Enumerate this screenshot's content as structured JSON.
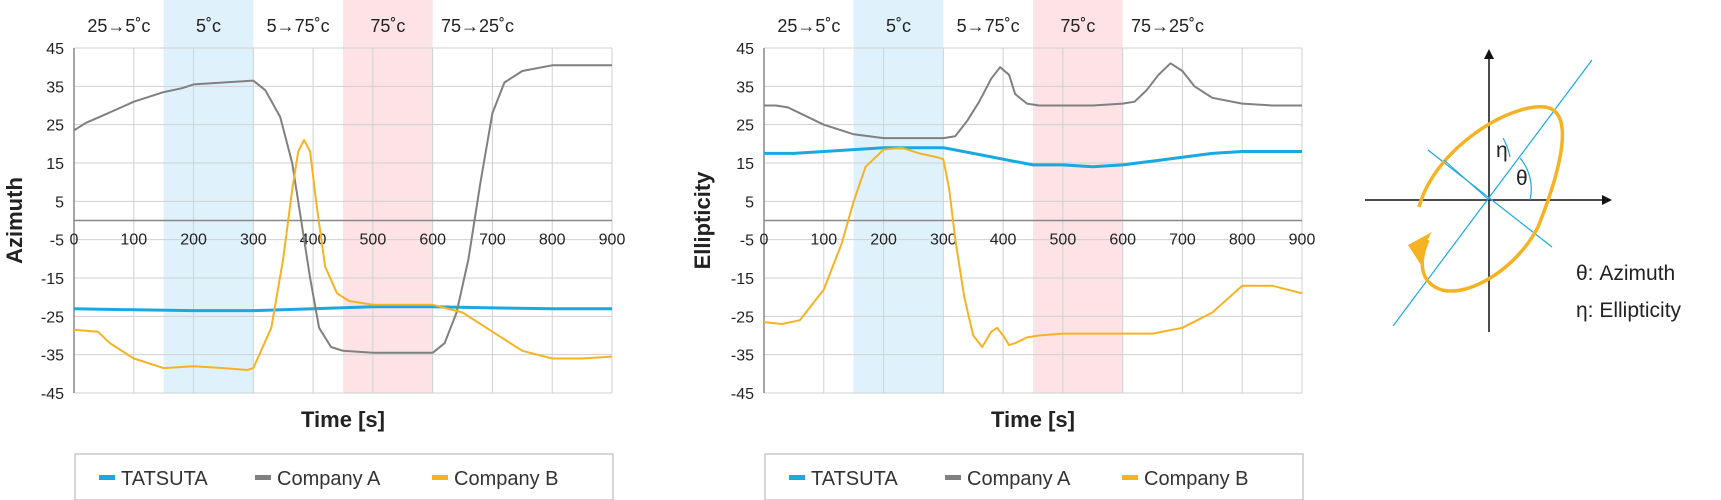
{
  "charts": [
    {
      "type": "line",
      "ylabel": "Azimuth",
      "xlabel": "Time [s]",
      "xlim": [
        0,
        900
      ],
      "ylim": [
        -45,
        45
      ],
      "xticks": [
        "0",
        "100",
        "200",
        "300",
        "400",
        "500",
        "600",
        "700",
        "800",
        "900"
      ],
      "yticks": [
        "45",
        "35",
        "25",
        "15",
        "5",
        "-5",
        "-15",
        "-25",
        "-35",
        "-45"
      ],
      "phases": [
        {
          "label": "25→5˚c",
          "from": 0,
          "to": 150,
          "shade": "none"
        },
        {
          "label": "5˚c",
          "from": 150,
          "to": 300,
          "shade": "#dff2fb"
        },
        {
          "label": "5→75˚c",
          "from": 300,
          "to": 450,
          "shade": "none"
        },
        {
          "label": "75˚c",
          "from": 450,
          "to": 600,
          "shade": "#fde3e6"
        },
        {
          "label": "75→25˚c",
          "from": 600,
          "to": 900,
          "shade": "none"
        }
      ],
      "legend": [
        "TATSUTA",
        "Company A",
        "Company B"
      ],
      "series": [
        {
          "name": "TATSUTA",
          "color": "#1aa8e0",
          "width": 3,
          "x": [
            0,
            100,
            200,
            300,
            400,
            500,
            600,
            700,
            800,
            900
          ],
          "y": [
            -23,
            -23.3,
            -23.5,
            -23.5,
            -23,
            -22.5,
            -22.5,
            -22.8,
            -23,
            -23
          ]
        },
        {
          "name": "Company A",
          "color": "#808080",
          "width": 2,
          "x": [
            0,
            20,
            50,
            100,
            150,
            180,
            200,
            250,
            300,
            320,
            345,
            365,
            380,
            395,
            410,
            430,
            450,
            500,
            550,
            600,
            620,
            640,
            660,
            680,
            700,
            720,
            750,
            800,
            850,
            900
          ],
          "y": [
            23.5,
            25.5,
            27.5,
            31,
            33.5,
            34.5,
            35.5,
            36,
            36.5,
            34,
            27,
            15,
            0,
            -15,
            -28,
            -33,
            -34,
            -34.5,
            -34.5,
            -34.5,
            -32,
            -24,
            -10,
            10,
            28,
            36,
            39,
            40.5,
            40.5,
            40.5
          ]
        },
        {
          "name": "Company B",
          "color": "#f5b324",
          "width": 2,
          "x": [
            0,
            40,
            60,
            100,
            150,
            200,
            250,
            290,
            300,
            330,
            350,
            365,
            375,
            385,
            395,
            405,
            420,
            440,
            460,
            500,
            550,
            600,
            650,
            700,
            750,
            800,
            850,
            900
          ],
          "y": [
            -28.5,
            -29,
            -32,
            -36,
            -38.5,
            -38,
            -38.5,
            -39,
            -38.5,
            -28,
            -10,
            8,
            18,
            21,
            18,
            5,
            -12,
            -19,
            -21,
            -22,
            -22,
            -22,
            -24,
            -29,
            -34,
            -36,
            -36,
            -35.5
          ]
        }
      ]
    },
    {
      "type": "line",
      "ylabel": "Ellipticity",
      "xlabel": "Time [s]",
      "xlim": [
        0,
        900
      ],
      "ylim": [
        -45,
        45
      ],
      "xticks": [
        "0",
        "100",
        "200",
        "300",
        "400",
        "500",
        "600",
        "700",
        "800",
        "900"
      ],
      "yticks": [
        "45",
        "35",
        "25",
        "15",
        "5",
        "-5",
        "-15",
        "-25",
        "-35",
        "-45"
      ],
      "phases": [
        {
          "label": "25→5˚c",
          "from": 0,
          "to": 150,
          "shade": "none"
        },
        {
          "label": "5˚c",
          "from": 150,
          "to": 300,
          "shade": "#dff2fb"
        },
        {
          "label": "5→75˚c",
          "from": 300,
          "to": 450,
          "shade": "none"
        },
        {
          "label": "75˚c",
          "from": 450,
          "to": 600,
          "shade": "#fde3e6"
        },
        {
          "label": "75→25˚c",
          "from": 600,
          "to": 900,
          "shade": "none"
        }
      ],
      "legend": [
        "TATSUTA",
        "Company A",
        "Company B"
      ],
      "series": [
        {
          "name": "TATSUTA",
          "color": "#1aa8e0",
          "width": 3,
          "x": [
            0,
            50,
            100,
            150,
            200,
            250,
            300,
            350,
            400,
            450,
            500,
            550,
            600,
            650,
            700,
            750,
            800,
            850,
            900
          ],
          "y": [
            17.5,
            17.5,
            18,
            18.5,
            19,
            19,
            19,
            17.5,
            16,
            14.5,
            14.5,
            14,
            14.5,
            15.5,
            16.5,
            17.5,
            18,
            18,
            18
          ]
        },
        {
          "name": "Company A",
          "color": "#808080",
          "width": 2,
          "x": [
            0,
            20,
            40,
            60,
            100,
            150,
            200,
            250,
            300,
            320,
            340,
            360,
            380,
            395,
            410,
            420,
            440,
            460,
            500,
            550,
            600,
            620,
            640,
            660,
            680,
            700,
            720,
            750,
            800,
            850,
            900
          ],
          "y": [
            30,
            30,
            29.5,
            28,
            25,
            22.5,
            21.5,
            21.5,
            21.5,
            22,
            26,
            31,
            37,
            40,
            38,
            33,
            30.5,
            30,
            30,
            30,
            30.5,
            31,
            34,
            38,
            41,
            39,
            35,
            32,
            30.5,
            30,
            30
          ]
        },
        {
          "name": "Company B",
          "color": "#f5b324",
          "width": 2,
          "x": [
            0,
            30,
            60,
            100,
            130,
            150,
            170,
            200,
            230,
            260,
            290,
            300,
            310,
            320,
            335,
            350,
            365,
            380,
            390,
            400,
            410,
            420,
            440,
            460,
            500,
            550,
            600,
            650,
            700,
            750,
            800,
            850,
            900
          ],
          "y": [
            -26.5,
            -27,
            -26,
            -18,
            -6,
            5,
            14,
            18.5,
            19,
            17.5,
            16.5,
            16,
            8,
            -5,
            -20,
            -30,
            -33,
            -29,
            -28,
            -30,
            -32.5,
            -32,
            -30.5,
            -30,
            -29.5,
            -29.5,
            -29.5,
            -29.5,
            -28,
            -24,
            -17,
            -17,
            -19
          ]
        }
      ]
    }
  ],
  "diagram": {
    "theta_label": "θ",
    "eta_label": "η",
    "legend_lines": [
      "θ: Azimuth",
      "η: Ellipticity"
    ],
    "ellipse_color": "#f5b324",
    "line_color": "#1aa8e0"
  }
}
